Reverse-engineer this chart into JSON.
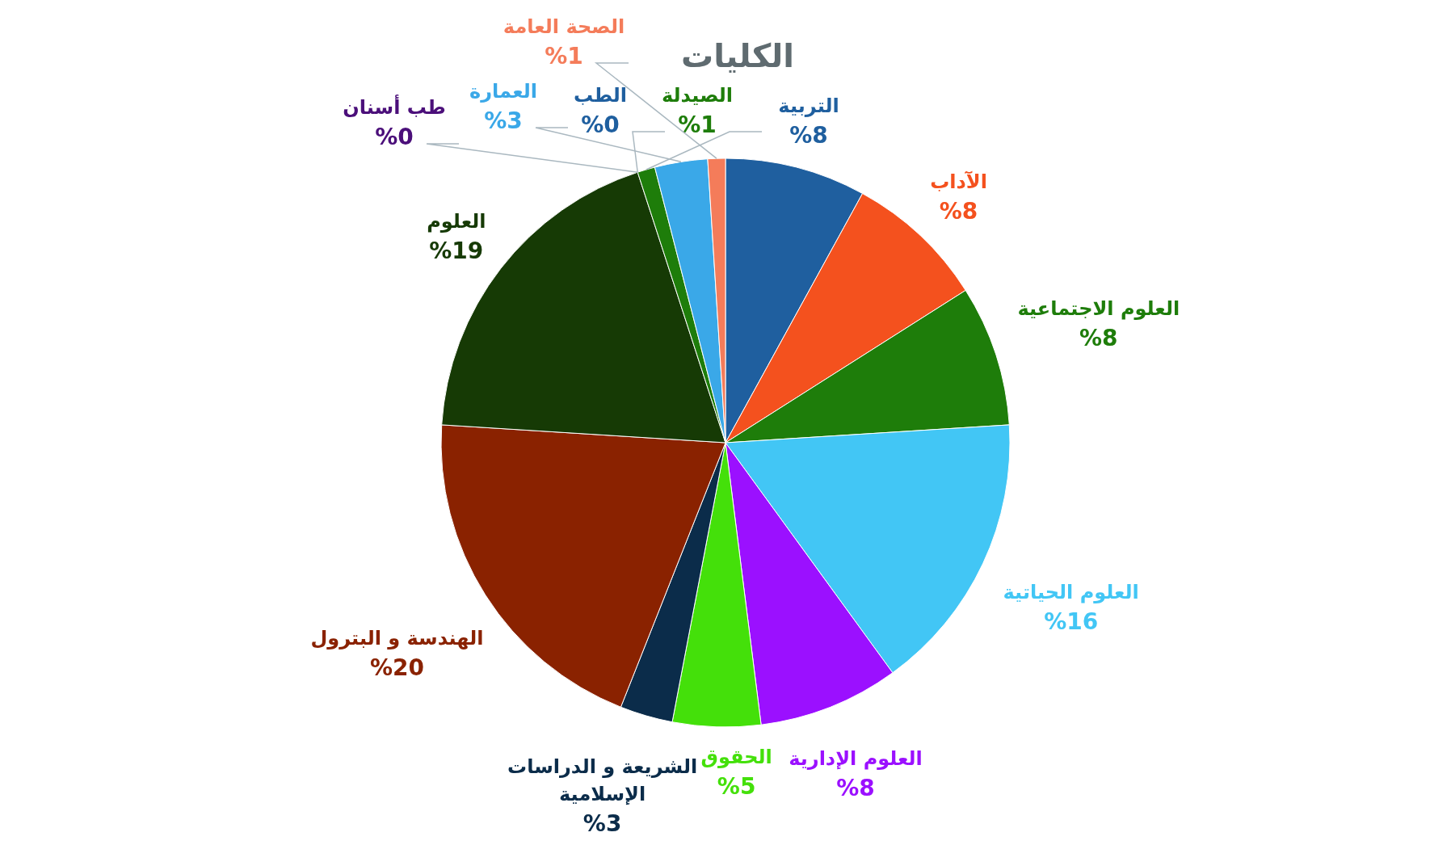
{
  "chart_data": {
    "type": "pie",
    "title": "الكليات",
    "categories": [
      "التربية",
      "الآداب",
      "العلوم الاجتماعية",
      "العلوم الحياتية",
      "العلوم الإدارية",
      "الحقوق",
      "الشريعة و الدراسات الإسلامية",
      "الهندسة و البترول",
      "العلوم",
      "الطب",
      "طب أسنان",
      "الصيدلة",
      "العمارة",
      "الصحة العامة"
    ],
    "values": [
      8,
      8,
      8,
      16,
      8,
      5,
      3,
      20,
      19,
      0,
      0,
      1,
      3,
      1
    ],
    "value_labels": [
      "%8",
      "%8",
      "%8",
      "%16",
      "%8",
      "%5",
      "%3",
      "%20",
      "%19",
      "%0",
      "%0",
      "%1",
      "%3",
      "%1"
    ],
    "colors": [
      "#1f5f9f",
      "#f4511e",
      "#1e7d0a",
      "#42c6f5",
      "#9b10ff",
      "#44e00a",
      "#0b2c4a",
      "#8a2200",
      "#163a05",
      "#1f5f9f",
      "#4b0f7a",
      "#1e7d0a",
      "#3aa8e8",
      "#f47c5a"
    ]
  }
}
